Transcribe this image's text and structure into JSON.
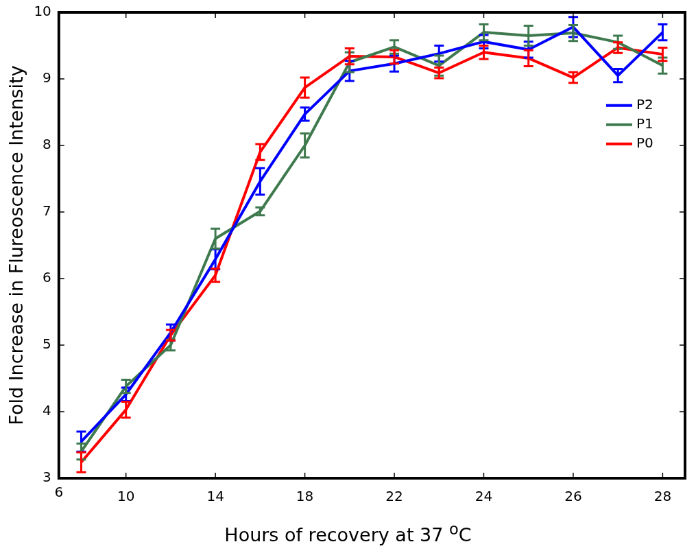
{
  "chart_data": {
    "type": "line",
    "xlabel": "Hours of recovery at 37 $^{o}$C",
    "ylabel": "Fold Increase in Flureoscence Intensity",
    "categories": [
      null,
      "10",
      null,
      "14",
      null,
      "18",
      null,
      "22",
      null,
      "24",
      null,
      "26",
      null,
      "28"
    ],
    "series": [
      {
        "name": "P2",
        "color": "#0000ff",
        "values": [
          3.55,
          4.26,
          5.19,
          6.29,
          7.46,
          8.47,
          9.12,
          9.23,
          9.38,
          9.56,
          9.44,
          9.78,
          9.05,
          9.7
        ],
        "errors": [
          0.15,
          0.1,
          0.12,
          0.15,
          0.2,
          0.1,
          0.15,
          0.12,
          0.12,
          0.1,
          0.12,
          0.15,
          0.1,
          0.12
        ]
      },
      {
        "name": "P1",
        "color": "#3f7a4f",
        "values": [
          3.4,
          4.38,
          5.0,
          6.6,
          7.01,
          8.0,
          9.25,
          9.48,
          9.2,
          9.7,
          9.65,
          9.69,
          9.55,
          9.2
        ],
        "errors": [
          0.12,
          0.1,
          0.08,
          0.15,
          0.06,
          0.18,
          0.15,
          0.1,
          0.15,
          0.12,
          0.15,
          0.12,
          0.1,
          0.12
        ]
      },
      {
        "name": "P0",
        "color": "#ff0000",
        "values": [
          3.24,
          4.03,
          5.15,
          6.05,
          7.9,
          8.87,
          9.34,
          9.33,
          9.09,
          9.4,
          9.31,
          9.02,
          9.47,
          9.37
        ],
        "errors": [
          0.15,
          0.12,
          0.08,
          0.1,
          0.12,
          0.15,
          0.12,
          0.1,
          0.08,
          0.1,
          0.12,
          0.08,
          0.08,
          0.1
        ]
      }
    ],
    "ylim": [
      3,
      10
    ],
    "yticks": [
      3,
      4,
      5,
      6,
      7,
      8,
      9,
      10
    ],
    "legend": "right",
    "line_style": "solid",
    "annotations": [
      "6"
    ]
  }
}
